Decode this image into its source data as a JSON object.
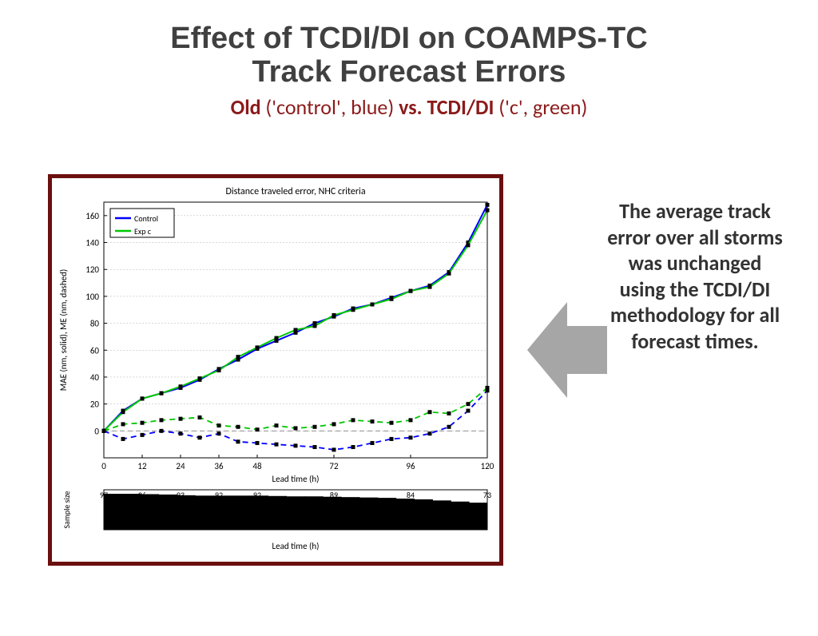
{
  "title": {
    "line1": "Effect of TCDI/DI on COAMPS-TC",
    "line2": "Track Forecast Errors"
  },
  "subtitle": {
    "parts": [
      {
        "text": "Old",
        "bold": true
      },
      {
        "text": " ('control', blue) ",
        "bold": false
      },
      {
        "text": "vs. TCDI/DI",
        "bold": true
      },
      {
        "text": " ('c', green)",
        "bold": false
      }
    ]
  },
  "sideText": "The average track error over all storms was unchanged using the TCDI/DI methodology for all forecast times.",
  "chart": {
    "title": "Distance traveled error, NHC criteria",
    "title_fontsize": 12,
    "xlabel": "Lead time (h)",
    "ylabel": "MAE (nm, solid), ME (nm, dashed)",
    "label_fontsize": 11,
    "xlim": [
      0,
      120
    ],
    "ylim": [
      -20,
      170
    ],
    "xticks": [
      0,
      12,
      24,
      36,
      48,
      72,
      96,
      120
    ],
    "yticks": [
      0,
      20,
      40,
      60,
      80,
      100,
      120,
      140,
      160
    ],
    "background_color": "#ffffff",
    "grid_color": "#b0b0b0",
    "zero_line_dash": true,
    "legend": {
      "position": "top-left",
      "border_color": "#000000",
      "items": [
        {
          "label": "Control",
          "color": "#0000ff"
        },
        {
          "label": "Exp c",
          "color": "#00c800"
        }
      ]
    },
    "x_data": [
      0,
      6,
      12,
      18,
      24,
      30,
      36,
      42,
      48,
      54,
      60,
      66,
      72,
      78,
      84,
      90,
      96,
      102,
      108,
      114,
      120
    ],
    "series": [
      {
        "name": "Control MAE",
        "color": "#0000ff",
        "dash": "solid",
        "width": 2.0,
        "marker": "square",
        "marker_color": "#000000",
        "y": [
          0,
          15,
          24,
          28,
          32,
          38,
          46,
          53,
          61,
          67,
          73,
          80,
          85,
          91,
          94,
          99,
          104,
          108,
          118,
          140,
          168
        ]
      },
      {
        "name": "Exp c MAE",
        "color": "#00c800",
        "dash": "solid",
        "width": 2.0,
        "marker": "square",
        "marker_color": "#000000",
        "y": [
          0,
          14,
          24,
          28,
          33,
          39,
          45,
          55,
          62,
          69,
          75,
          78,
          86,
          90,
          94,
          98,
          104,
          107,
          117,
          138,
          164
        ]
      },
      {
        "name": "Control ME",
        "color": "#0000ff",
        "dash": "dashed",
        "width": 1.8,
        "marker": "square",
        "marker_color": "#000000",
        "y": [
          0,
          -6,
          -3,
          0,
          -2,
          -5,
          -2,
          -8,
          -9,
          -10,
          -11,
          -12,
          -14,
          -12,
          -9,
          -6,
          -5,
          -2,
          3,
          15,
          30
        ]
      },
      {
        "name": "Exp c ME",
        "color": "#00c800",
        "dash": "dashed",
        "width": 1.8,
        "marker": "square",
        "marker_color": "#000000",
        "y": [
          0,
          5,
          6,
          8,
          9,
          10,
          4,
          3,
          1,
          4,
          2,
          3,
          5,
          8,
          7,
          6,
          8,
          14,
          13,
          20,
          32
        ]
      }
    ]
  },
  "sample_panel": {
    "ylabel": "Sample size",
    "xlabel": "Lead time (h)",
    "bar_color": "#000000",
    "values": [
      97,
      97,
      96,
      95,
      93,
      92,
      92,
      92,
      92,
      91,
      90,
      90,
      89,
      88,
      87,
      86,
      84,
      82,
      79,
      76,
      73
    ],
    "labels_shown": [
      {
        "x": 0,
        "v": 97
      },
      {
        "x": 12,
        "v": 96
      },
      {
        "x": 24,
        "v": 93
      },
      {
        "x": 36,
        "v": 92
      },
      {
        "x": 48,
        "v": 92
      },
      {
        "x": 72,
        "v": 89
      },
      {
        "x": 96,
        "v": 84
      },
      {
        "x": 120,
        "v": 73
      }
    ]
  },
  "arrow": {
    "fill": "#a6a6a6",
    "direction": "left"
  }
}
